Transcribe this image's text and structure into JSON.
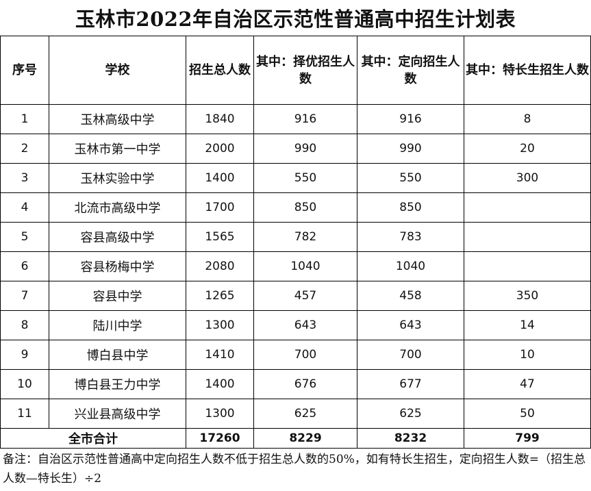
{
  "title": "玉林市2022年自治区示范性普通高中招生计划表",
  "headers": {
    "seq": "序号",
    "school": "学校",
    "total": "招生总人数",
    "merit": "其中：择优招生人数",
    "directed": "其中：定向招生人数",
    "special": "其中：特长生招生人数"
  },
  "rows": [
    {
      "seq": "1",
      "school": "玉林高级中学",
      "total": "1840",
      "merit": "916",
      "directed": "916",
      "special": "8"
    },
    {
      "seq": "2",
      "school": "玉林市第一中学",
      "total": "2000",
      "merit": "990",
      "directed": "990",
      "special": "20"
    },
    {
      "seq": "3",
      "school": "玉林实验中学",
      "total": "1400",
      "merit": "550",
      "directed": "550",
      "special": "300"
    },
    {
      "seq": "4",
      "school": "北流市高级中学",
      "total": "1700",
      "merit": "850",
      "directed": "850",
      "special": ""
    },
    {
      "seq": "5",
      "school": "容县高级中学",
      "total": "1565",
      "merit": "782",
      "directed": "783",
      "special": ""
    },
    {
      "seq": "6",
      "school": "容县杨梅中学",
      "total": "2080",
      "merit": "1040",
      "directed": "1040",
      "special": ""
    },
    {
      "seq": "7",
      "school": "容县中学",
      "total": "1265",
      "merit": "457",
      "directed": "458",
      "special": "350"
    },
    {
      "seq": "8",
      "school": "陆川中学",
      "total": "1300",
      "merit": "643",
      "directed": "643",
      "special": "14"
    },
    {
      "seq": "9",
      "school": "博白县中学",
      "total": "1410",
      "merit": "700",
      "directed": "700",
      "special": "10"
    },
    {
      "seq": "10",
      "school": "博白县王力中学",
      "total": "1400",
      "merit": "676",
      "directed": "677",
      "special": "47"
    },
    {
      "seq": "11",
      "school": "兴业县高级中学",
      "total": "1300",
      "merit": "625",
      "directed": "625",
      "special": "50"
    }
  ],
  "totals": {
    "label": "全市合计",
    "total": "17260",
    "merit": "8229",
    "directed": "8232",
    "special": "799"
  },
  "note": "备注：自治区示范性普通高中定向招生人数不低于招生总人数的50%，如有特长生招生，定向招生人数=（招生总人数—特长生）÷2"
}
